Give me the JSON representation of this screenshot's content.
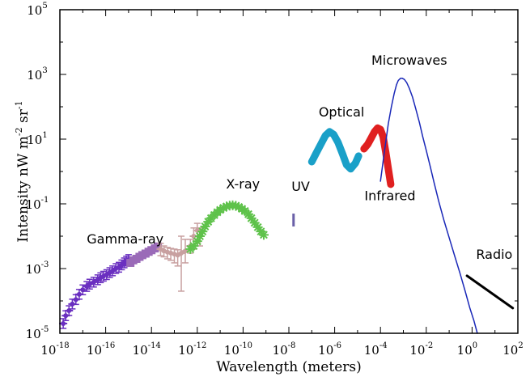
{
  "chart_data": {
    "type": "scatter",
    "title": "",
    "xlabel": "Wavelength (meters)",
    "ylabel": {
      "prefix": "Intensity nW m",
      "exp1": "-2",
      "mid": " sr",
      "exp2": "-1"
    },
    "x_scale": "log",
    "y_scale": "log",
    "xlim": [
      1e-18,
      100.0
    ],
    "ylim": [
      1e-05,
      100000.0
    ],
    "grid": false,
    "legend": "none",
    "x_ticks": [
      {
        "value": 1e-18,
        "base": "10",
        "exp": "-18"
      },
      {
        "value": 1e-16,
        "base": "10",
        "exp": "-16"
      },
      {
        "value": 1e-14,
        "base": "10",
        "exp": "-14"
      },
      {
        "value": 1e-12,
        "base": "10",
        "exp": "-12"
      },
      {
        "value": 1e-10,
        "base": "10",
        "exp": "-10"
      },
      {
        "value": 1e-08,
        "base": "10",
        "exp": "-8"
      },
      {
        "value": 1e-06,
        "base": "10",
        "exp": "-6"
      },
      {
        "value": 0.0001,
        "base": "10",
        "exp": "-4"
      },
      {
        "value": 0.01,
        "base": "10",
        "exp": "-2"
      },
      {
        "value": 1.0,
        "base": "10",
        "exp": "0"
      },
      {
        "value": 100.0,
        "base": "10",
        "exp": "2"
      }
    ],
    "y_ticks": [
      {
        "value": 1e-05,
        "base": "10",
        "exp": "-5"
      },
      {
        "value": 0.001,
        "base": "10",
        "exp": "-3"
      },
      {
        "value": 0.1,
        "base": "10",
        "exp": "-1"
      },
      {
        "value": 10.0,
        "base": "10",
        "exp": "1"
      },
      {
        "value": 1000.0,
        "base": "10",
        "exp": "3"
      },
      {
        "value": 100000.0,
        "base": "10",
        "exp": "5"
      }
    ],
    "series": [
      {
        "band": "gamma-ray-low",
        "color": "#6a2fc0",
        "marker": "errorbar",
        "points": [
          [
            1.4e-18,
            2e-05
          ],
          [
            1.8e-18,
            3.5e-05
          ],
          [
            2.5e-18,
            5e-05
          ],
          [
            3.5e-18,
            8e-05
          ],
          [
            5e-18,
            0.00011
          ],
          [
            7e-18,
            0.00016
          ],
          [
            1e-17,
            0.00022
          ],
          [
            1.5e-17,
            0.00028
          ],
          [
            2e-17,
            0.00033
          ],
          [
            3e-17,
            0.00038
          ],
          [
            4.5e-17,
            0.00045
          ],
          [
            6e-17,
            0.00052
          ],
          [
            8e-17,
            0.00058
          ],
          [
            1.1e-16,
            0.00065
          ],
          [
            1.5e-16,
            0.00075
          ],
          [
            2e-16,
            0.00085
          ],
          [
            2.8e-16,
            0.001
          ],
          [
            3.8e-16,
            0.0011
          ],
          [
            5e-16,
            0.0013
          ],
          [
            6.5e-16,
            0.0015
          ],
          [
            8e-16,
            0.0017
          ],
          [
            1e-15,
            0.0019
          ]
        ]
      },
      {
        "band": "gamma-ray-high",
        "color": "#9a6ab8",
        "marker": "square",
        "points": [
          [
            1.2e-15,
            0.0015
          ],
          [
            1.6e-15,
            0.0018
          ],
          [
            2.2e-15,
            0.002
          ],
          [
            3e-15,
            0.0023
          ],
          [
            4e-15,
            0.0026
          ],
          [
            5.5e-15,
            0.0029
          ],
          [
            7.5e-15,
            0.0033
          ],
          [
            1e-14,
            0.0037
          ],
          [
            1.4e-14,
            0.0042
          ],
          [
            1.9e-14,
            0.0048
          ]
        ]
      },
      {
        "band": "hard-x-ray",
        "color": "#c8a0a0",
        "marker": "errorbar",
        "points": [
          [
            2.5e-14,
            0.004,
            0.0025,
            0.006
          ],
          [
            3.5e-14,
            0.0035,
            0.0023,
            0.005
          ],
          [
            5e-14,
            0.0032,
            0.002,
            0.0045
          ],
          [
            7e-14,
            0.003,
            0.0018,
            0.0042
          ],
          [
            1e-13,
            0.0028,
            0.0015,
            0.004
          ],
          [
            1.4e-13,
            0.0026,
            0.0012,
            0.0038
          ],
          [
            2e-13,
            0.003,
            0.0002,
            0.01
          ],
          [
            3e-13,
            0.0035,
            0.0015,
            0.008
          ],
          [
            5e-13,
            0.005,
            0.003,
            0.008
          ],
          [
            7e-13,
            0.01,
            0.004,
            0.018
          ],
          [
            1e-12,
            0.015,
            0.006,
            0.025
          ],
          [
            1.3e-12,
            0.01,
            0.005,
            0.018
          ]
        ]
      },
      {
        "band": "x-ray",
        "color": "#5ec24a",
        "marker": "star",
        "points": [
          [
            5e-13,
            0.004
          ],
          [
            7e-13,
            0.005
          ],
          [
            1e-12,
            0.007
          ],
          [
            1.3e-12,
            0.01
          ],
          [
            1.7e-12,
            0.014
          ],
          [
            2.2e-12,
            0.02
          ],
          [
            3e-12,
            0.028
          ],
          [
            4e-12,
            0.036
          ],
          [
            5.5e-12,
            0.045
          ],
          [
            7.5e-12,
            0.055
          ],
          [
            1e-11,
            0.065
          ],
          [
            1.4e-11,
            0.075
          ],
          [
            1.9e-11,
            0.083
          ],
          [
            2.6e-11,
            0.088
          ],
          [
            3.5e-11,
            0.09
          ],
          [
            4.8e-11,
            0.087
          ],
          [
            6.5e-11,
            0.08
          ],
          [
            9e-11,
            0.07
          ],
          [
            1.2e-10,
            0.06
          ],
          [
            1.7e-10,
            0.048
          ],
          [
            2.3e-10,
            0.036
          ],
          [
            3.2e-10,
            0.026
          ],
          [
            4.4e-10,
            0.019
          ],
          [
            6e-10,
            0.014
          ],
          [
            8e-10,
            0.011
          ]
        ]
      },
      {
        "band": "uv",
        "color": "#6a60a8",
        "marker": "bar",
        "points": [
          [
            1.6e-08,
            0.02,
            0.05
          ]
        ]
      },
      {
        "band": "optical",
        "color": "#1aa0c8",
        "marker": "thick-line",
        "points": [
          [
            1e-07,
            2.0
          ],
          [
            1.5e-07,
            3.5
          ],
          [
            2.5e-07,
            7.0
          ],
          [
            4e-07,
            13.0
          ],
          [
            6e-07,
            17.0
          ],
          [
            9e-07,
            14.0
          ],
          [
            1.4e-06,
            8.0
          ],
          [
            2.2e-06,
            3.5
          ],
          [
            3.3e-06,
            1.6
          ],
          [
            5e-06,
            1.2
          ],
          [
            8e-06,
            1.8
          ],
          [
            1.1e-05,
            3.0
          ]
        ]
      },
      {
        "band": "infrared",
        "color": "#e02020",
        "marker": "thick-line",
        "points": [
          [
            1.9e-05,
            5.0
          ],
          [
            2.8e-05,
            7.0
          ],
          [
            4e-05,
            11.0
          ],
          [
            5.5e-05,
            17.0
          ],
          [
            7.5e-05,
            22.0
          ],
          [
            0.0001,
            20.0
          ],
          [
            0.00013,
            12.0
          ],
          [
            0.00017,
            4.0
          ],
          [
            0.00022,
            1.2
          ],
          [
            0.00028,
            0.4
          ]
        ]
      },
      {
        "band": "microwaves",
        "color": "#1a28b8",
        "marker": "line",
        "points": [
          [
            0.0001,
            0.5
          ],
          [
            0.00013,
            2.0
          ],
          [
            0.00017,
            8.0
          ],
          [
            0.00022,
            30.0
          ],
          [
            0.0003,
            100.0
          ],
          [
            0.0004,
            260.0
          ],
          [
            0.0005,
            480.0
          ],
          [
            0.0006,
            650.0
          ],
          [
            0.00075,
            760.0
          ],
          [
            0.0009,
            760.0
          ],
          [
            0.0011,
            700.0
          ],
          [
            0.0014,
            560.0
          ],
          [
            0.0018,
            380.0
          ],
          [
            0.0025,
            200.0
          ],
          [
            0.0035,
            85.0
          ],
          [
            0.005,
            33.0
          ],
          [
            0.007,
            12.0
          ],
          [
            0.01,
            4.5
          ],
          [
            0.015,
            1.4
          ],
          [
            0.022,
            0.45
          ],
          [
            0.035,
            0.12
          ],
          [
            0.06,
            0.03
          ],
          [
            0.1,
            0.009
          ],
          [
            0.17,
            0.0026
          ],
          [
            0.3,
            0.0007
          ],
          [
            0.5,
            0.0002
          ],
          [
            0.8,
            6e-05
          ],
          [
            1.2,
            2.5e-05
          ],
          [
            1.7,
            1e-05
          ]
        ]
      },
      {
        "band": "radio",
        "color": "#000000",
        "marker": "line",
        "points": [
          [
            0.6,
            0.0006
          ],
          [
            60.0,
            6e-05
          ]
        ]
      }
    ],
    "annotations": [
      {
        "text": "Gamma-ray",
        "x": 1.5e-17,
        "y": 0.006
      },
      {
        "text": "X-ray",
        "x": 1.8e-11,
        "y": 0.3
      },
      {
        "text": "UV",
        "x": 1.3e-08,
        "y": 0.25
      },
      {
        "text": "Optical",
        "x": 2e-07,
        "y": 50.0
      },
      {
        "text": "Infrared",
        "x": 2e-05,
        "y": 0.13
      },
      {
        "text": "Microwaves",
        "x": 4e-05,
        "y": 2000.0
      },
      {
        "text": "Radio",
        "x": 1.5,
        "y": 0.002
      }
    ]
  }
}
